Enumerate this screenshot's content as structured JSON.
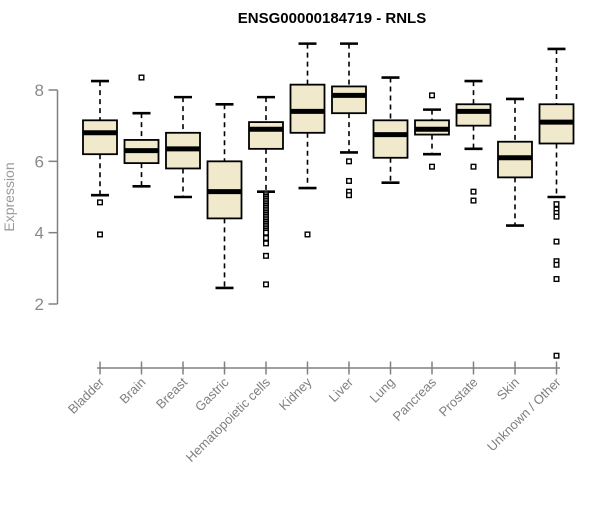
{
  "chart_data": {
    "type": "boxplot",
    "title": "ENSG00000184719 - RNLS",
    "ylabel": "Expression",
    "xlabel": "",
    "yticks": [
      2,
      4,
      6,
      8
    ],
    "ylim_drawn": [
      2,
      8
    ],
    "grid": false,
    "legend": null,
    "colors": {
      "box_fill": "#F0E9CC",
      "box_border": "#000000",
      "median": "#000000",
      "whisker": "#000000",
      "axis": "#808080",
      "tick_label": "#8a8a8e",
      "category_label": "#7f7f7f",
      "title": "#000000",
      "background": "#ffffff"
    },
    "categories": [
      "Bladder",
      "Brain",
      "Breast",
      "Gastric",
      "Hematopoietic cells",
      "Kidney",
      "Liver",
      "Lung",
      "Pancreas",
      "Prostate",
      "Skin",
      "Unknown / Other"
    ],
    "series": [
      {
        "category": "Bladder",
        "whisker_low": 5.05,
        "q1": 6.2,
        "median": 6.8,
        "q3": 7.15,
        "whisker_high": 8.25,
        "outliers": [
          4.85,
          3.95
        ]
      },
      {
        "category": "Brain",
        "whisker_low": 5.3,
        "q1": 5.95,
        "median": 6.3,
        "q3": 6.6,
        "whisker_high": 7.35,
        "outliers": [
          8.35
        ]
      },
      {
        "category": "Breast",
        "whisker_low": 5.0,
        "q1": 5.8,
        "median": 6.35,
        "q3": 6.8,
        "whisker_high": 7.8,
        "outliers": []
      },
      {
        "category": "Gastric",
        "whisker_low": 2.45,
        "q1": 4.4,
        "median": 5.15,
        "q3": 6.0,
        "whisker_high": 7.6,
        "outliers": []
      },
      {
        "category": "Hematopoietic cells",
        "whisker_low": 5.15,
        "q1": 6.35,
        "median": 6.9,
        "q3": 7.1,
        "whisker_high": 7.8,
        "outliers": [
          5.1,
          5.05,
          5.0,
          4.95,
          4.9,
          4.85,
          4.8,
          4.75,
          4.7,
          4.65,
          4.6,
          4.55,
          4.5,
          4.45,
          4.4,
          4.35,
          4.3,
          4.25,
          4.2,
          4.15,
          4.1,
          4.05,
          4.0,
          3.85,
          3.7,
          3.35,
          2.55
        ]
      },
      {
        "category": "Kidney",
        "whisker_low": 5.25,
        "q1": 6.8,
        "median": 7.4,
        "q3": 8.15,
        "whisker_high": 9.3,
        "outliers": [
          3.95
        ]
      },
      {
        "category": "Liver",
        "whisker_low": 6.25,
        "q1": 7.35,
        "median": 7.85,
        "q3": 8.1,
        "whisker_high": 9.3,
        "outliers": [
          6.0,
          5.45,
          5.15,
          5.05
        ]
      },
      {
        "category": "Lung",
        "whisker_low": 5.4,
        "q1": 6.1,
        "median": 6.75,
        "q3": 7.15,
        "whisker_high": 8.35,
        "outliers": []
      },
      {
        "category": "Pancreas",
        "whisker_low": 6.2,
        "q1": 6.75,
        "median": 6.9,
        "q3": 7.15,
        "whisker_high": 7.45,
        "outliers": [
          7.85,
          5.85
        ]
      },
      {
        "category": "Prostate",
        "whisker_low": 6.35,
        "q1": 7.0,
        "median": 7.4,
        "q3": 7.6,
        "whisker_high": 8.25,
        "outliers": [
          5.85,
          5.15,
          4.9
        ]
      },
      {
        "category": "Skin",
        "whisker_low": 4.2,
        "q1": 5.55,
        "median": 6.1,
        "q3": 6.55,
        "whisker_high": 7.75,
        "outliers": []
      },
      {
        "category": "Unknown / Other",
        "whisker_low": 5.0,
        "q1": 6.5,
        "median": 7.1,
        "q3": 7.6,
        "whisker_high": 9.15,
        "outliers": [
          4.8,
          4.65,
          4.55,
          4.45,
          3.75,
          3.2,
          3.1,
          2.7,
          0.55
        ]
      }
    ]
  }
}
